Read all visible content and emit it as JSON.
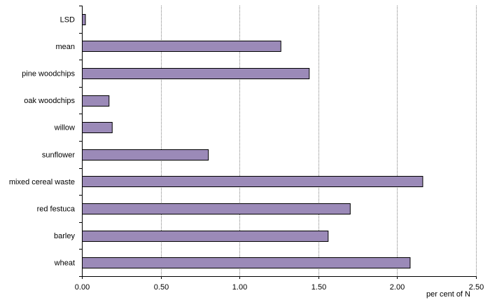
{
  "chart_data": {
    "type": "bar",
    "orientation": "horizontal",
    "categories": [
      "LSD",
      "mean",
      "pine woodchips",
      "oak woodchips",
      "willow",
      "sunflower",
      "mixed cereal waste",
      "red festuca",
      "barley",
      "wheat"
    ],
    "values": [
      0.02,
      1.26,
      1.44,
      0.17,
      0.19,
      0.8,
      2.16,
      1.7,
      1.56,
      2.08
    ],
    "xlabel": "per cent of N",
    "xlim": [
      0,
      2.5
    ],
    "xticks": [
      "0.00",
      "0.50",
      "1.00",
      "1.50",
      "2.00",
      "2.50"
    ],
    "grid": "vertical",
    "legend": "none",
    "bar_color": "#9b8ab8",
    "bar_edge_color": "#000000"
  }
}
